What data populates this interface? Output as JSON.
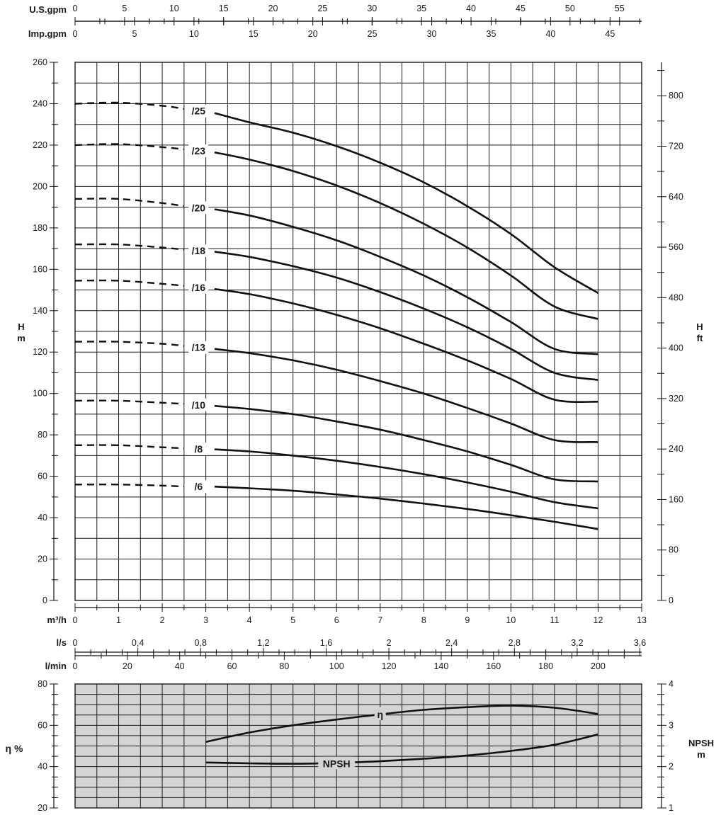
{
  "top_axes": {
    "usgpm": {
      "label": "U.S.gpm",
      "ticks": [
        "0",
        "5",
        "10",
        "15",
        "20",
        "25",
        "30",
        "35",
        "40",
        "45",
        "50",
        "55"
      ]
    },
    "impgpm": {
      "label": "Imp.gpm",
      "ticks": [
        "0",
        "5",
        "10",
        "15",
        "20",
        "25",
        "30",
        "35",
        "40",
        "45"
      ]
    }
  },
  "bottom_axes": {
    "m3h": {
      "label": "m³/h",
      "ticks": [
        "0",
        "1",
        "2",
        "3",
        "4",
        "5",
        "6",
        "7",
        "8",
        "9",
        "10",
        "11",
        "12",
        "13"
      ]
    },
    "ls": {
      "label": "l/s",
      "ticks": [
        "0",
        "0,4",
        "0,8",
        "1,2",
        "1,6",
        "2",
        "2,4",
        "2,8",
        "3,2",
        "3,6"
      ]
    },
    "lmin": {
      "label": "l/min",
      "ticks": [
        "0",
        "20",
        "40",
        "60",
        "80",
        "100",
        "120",
        "140",
        "160",
        "180",
        "200"
      ]
    }
  },
  "head_axis": {
    "label_line1": "H",
    "label_line2": "m",
    "ticks": [
      "0",
      "20",
      "40",
      "60",
      "80",
      "100",
      "120",
      "140",
      "160",
      "180",
      "200",
      "220",
      "240",
      "260"
    ]
  },
  "head_ft_axis": {
    "label_line1": "H",
    "label_line2": "ft",
    "ticks": [
      "0",
      "80",
      "160",
      "240",
      "320",
      "400",
      "480",
      "560",
      "640",
      "720",
      "800"
    ]
  },
  "eff_axis": {
    "label": "η %",
    "ticks": [
      "20",
      "40",
      "60",
      "80"
    ]
  },
  "npsh_axis": {
    "label_line1": "NPSH",
    "label_line2": "m",
    "ticks": [
      "1",
      "2",
      "3",
      "4"
    ]
  },
  "colors": {
    "ink": "#111111",
    "lower_panel_bg": "#d4d4d4"
  },
  "chart_data": [
    {
      "type": "line",
      "xlabel": "m³/h",
      "ylabel": "H m",
      "xlim": [
        0,
        13
      ],
      "ylim": [
        0,
        260
      ],
      "y2lim_ft": [
        0,
        853
      ],
      "grid": true,
      "series": [
        {
          "name": "/25",
          "dashed": {
            "x": [
              0,
              1,
              2,
              2.5
            ],
            "y": [
              240,
              240.5,
              239,
              237.5
            ]
          },
          "solid": {
            "x": [
              3.2,
              4,
              5,
              6,
              7,
              8,
              9,
              10,
              11,
              12
            ],
            "y": [
              235.5,
              231,
              226,
              219.5,
              211.5,
              202,
              190.5,
              177,
              161,
              148.5
            ]
          }
        },
        {
          "name": "/23",
          "dashed": {
            "x": [
              0,
              1,
              2,
              2.5
            ],
            "y": [
              220,
              220.5,
              219,
              218
            ]
          },
          "solid": {
            "x": [
              3.2,
              4,
              5,
              6,
              7,
              8,
              9,
              10,
              11,
              12
            ],
            "y": [
              216.5,
              213,
              207.5,
              200.5,
              192,
              182,
              170.5,
              157,
              142,
              136
            ]
          }
        },
        {
          "name": "/20",
          "dashed": {
            "x": [
              0,
              1,
              2,
              2.5
            ],
            "y": [
              194,
              194,
              192,
              190.5
            ]
          },
          "solid": {
            "x": [
              3.2,
              4,
              5,
              6,
              7,
              8,
              9,
              10,
              11,
              12
            ],
            "y": [
              189,
              186,
              180.5,
              174,
              166,
              157,
              146.5,
              134.5,
              121.5,
              119
            ]
          }
        },
        {
          "name": "/18",
          "dashed": {
            "x": [
              0,
              1,
              2,
              2.5
            ],
            "y": [
              172,
              172,
              170.5,
              169.5
            ]
          },
          "solid": {
            "x": [
              3.2,
              4,
              5,
              6,
              7,
              8,
              9,
              10,
              11,
              12
            ],
            "y": [
              168.5,
              166,
              161.5,
              156,
              149,
              141,
              132,
              121.5,
              110,
              106.5
            ]
          }
        },
        {
          "name": "/16",
          "dashed": {
            "x": [
              0,
              1,
              2,
              2.5
            ],
            "y": [
              154.5,
              154.5,
              153,
              152
            ]
          },
          "solid": {
            "x": [
              3.2,
              4,
              5,
              6,
              7,
              8,
              9,
              10,
              11,
              12
            ],
            "y": [
              150.5,
              148,
              143.5,
              138,
              131.5,
              124,
              116,
              107,
              97,
              96
            ]
          }
        },
        {
          "name": "/13",
          "dashed": {
            "x": [
              0,
              1,
              2,
              2.5
            ],
            "y": [
              125,
              125,
              124,
              123
            ]
          },
          "solid": {
            "x": [
              3.2,
              4,
              5,
              6,
              7,
              8,
              9,
              10,
              11,
              12
            ],
            "y": [
              121.5,
              119.5,
              116,
              111.5,
              106,
              100,
              93,
              85.5,
              77.5,
              76.5
            ]
          }
        },
        {
          "name": "/10",
          "dashed": {
            "x": [
              0,
              1,
              2,
              2.5
            ],
            "y": [
              96.5,
              96.5,
              95.5,
              95
            ]
          },
          "solid": {
            "x": [
              3.2,
              4,
              5,
              6,
              7,
              8,
              9,
              10,
              11,
              12
            ],
            "y": [
              94,
              92.5,
              90,
              86.5,
              82.5,
              77.5,
              72,
              65.5,
              58.5,
              57.5
            ]
          }
        },
        {
          "name": "/8",
          "dashed": {
            "x": [
              0,
              1,
              2,
              2.5
            ],
            "y": [
              75,
              75,
              74,
              73.5
            ]
          },
          "solid": {
            "x": [
              3.2,
              4,
              5,
              6,
              7,
              8,
              9,
              10,
              11,
              12
            ],
            "y": [
              73,
              72,
              70,
              67.5,
              64.5,
              61,
              57,
              52.5,
              47.5,
              44.5
            ]
          }
        },
        {
          "name": "/6",
          "dashed": {
            "x": [
              0,
              1,
              2,
              2.5
            ],
            "y": [
              56,
              56,
              55.5,
              55
            ]
          },
          "solid": {
            "x": [
              3.2,
              4,
              5,
              6,
              7,
              8,
              9,
              10,
              11,
              12
            ],
            "y": [
              55,
              54.2,
              53,
              51.2,
              49.2,
              46.8,
              44.2,
              41.2,
              38,
              34.5
            ]
          }
        }
      ]
    },
    {
      "type": "line",
      "xlabel": "m³/h",
      "ylabel": "η %",
      "xlim": [
        0,
        13
      ],
      "ylim": [
        20,
        80
      ],
      "y2lim": [
        1,
        4
      ],
      "grid": true,
      "series": [
        {
          "name": "η",
          "axis": "left",
          "x": [
            3,
            4,
            5,
            6,
            7,
            8,
            9,
            10,
            11,
            12
          ],
          "y": [
            52,
            56.5,
            60,
            62.8,
            65.3,
            67.5,
            68.8,
            69.5,
            68.5,
            65.5
          ]
        },
        {
          "name": "NPSH",
          "axis": "right",
          "x": [
            3,
            4,
            5,
            6,
            7,
            8,
            9,
            10,
            11,
            12
          ],
          "y": [
            2.1,
            2.08,
            2.07,
            2.09,
            2.13,
            2.19,
            2.27,
            2.38,
            2.53,
            2.78
          ]
        }
      ]
    }
  ]
}
